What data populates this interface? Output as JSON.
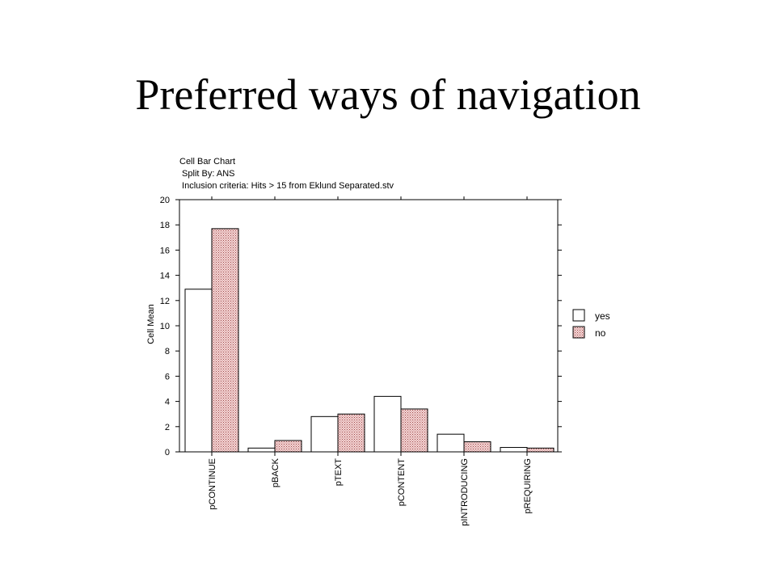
{
  "slide": {
    "title": "Preferred ways of navigation"
  },
  "chart_header": {
    "line1": "Cell Bar Chart",
    "line2": " Split By: ANS",
    "line3": " Inclusion criteria: Hits > 15 from Eklund Separated.stv"
  },
  "chart_data": {
    "type": "bar",
    "title": "Cell Bar Chart",
    "subtitle": "Split By: ANS",
    "ylabel": "Cell Mean",
    "xlabel": "",
    "ylim": [
      0,
      20
    ],
    "yticks": [
      0,
      2,
      4,
      6,
      8,
      10,
      12,
      14,
      16,
      18,
      20
    ],
    "categories": [
      "pCONTINUE",
      "pBACK",
      "pTEXT",
      "pCONTENT",
      "pINTRODUCING",
      "pREQUIRING"
    ],
    "series": [
      {
        "name": "yes",
        "values": [
          12.9,
          0.3,
          2.8,
          4.4,
          1.4,
          0.35
        ]
      },
      {
        "name": "no",
        "values": [
          17.7,
          0.9,
          3.0,
          3.4,
          0.8,
          0.3
        ]
      }
    ],
    "legend_position": "right",
    "grid": false,
    "colors": {
      "yes": "#ffffff",
      "no": "#f2d2d2",
      "no_dots": "#a04848"
    }
  }
}
